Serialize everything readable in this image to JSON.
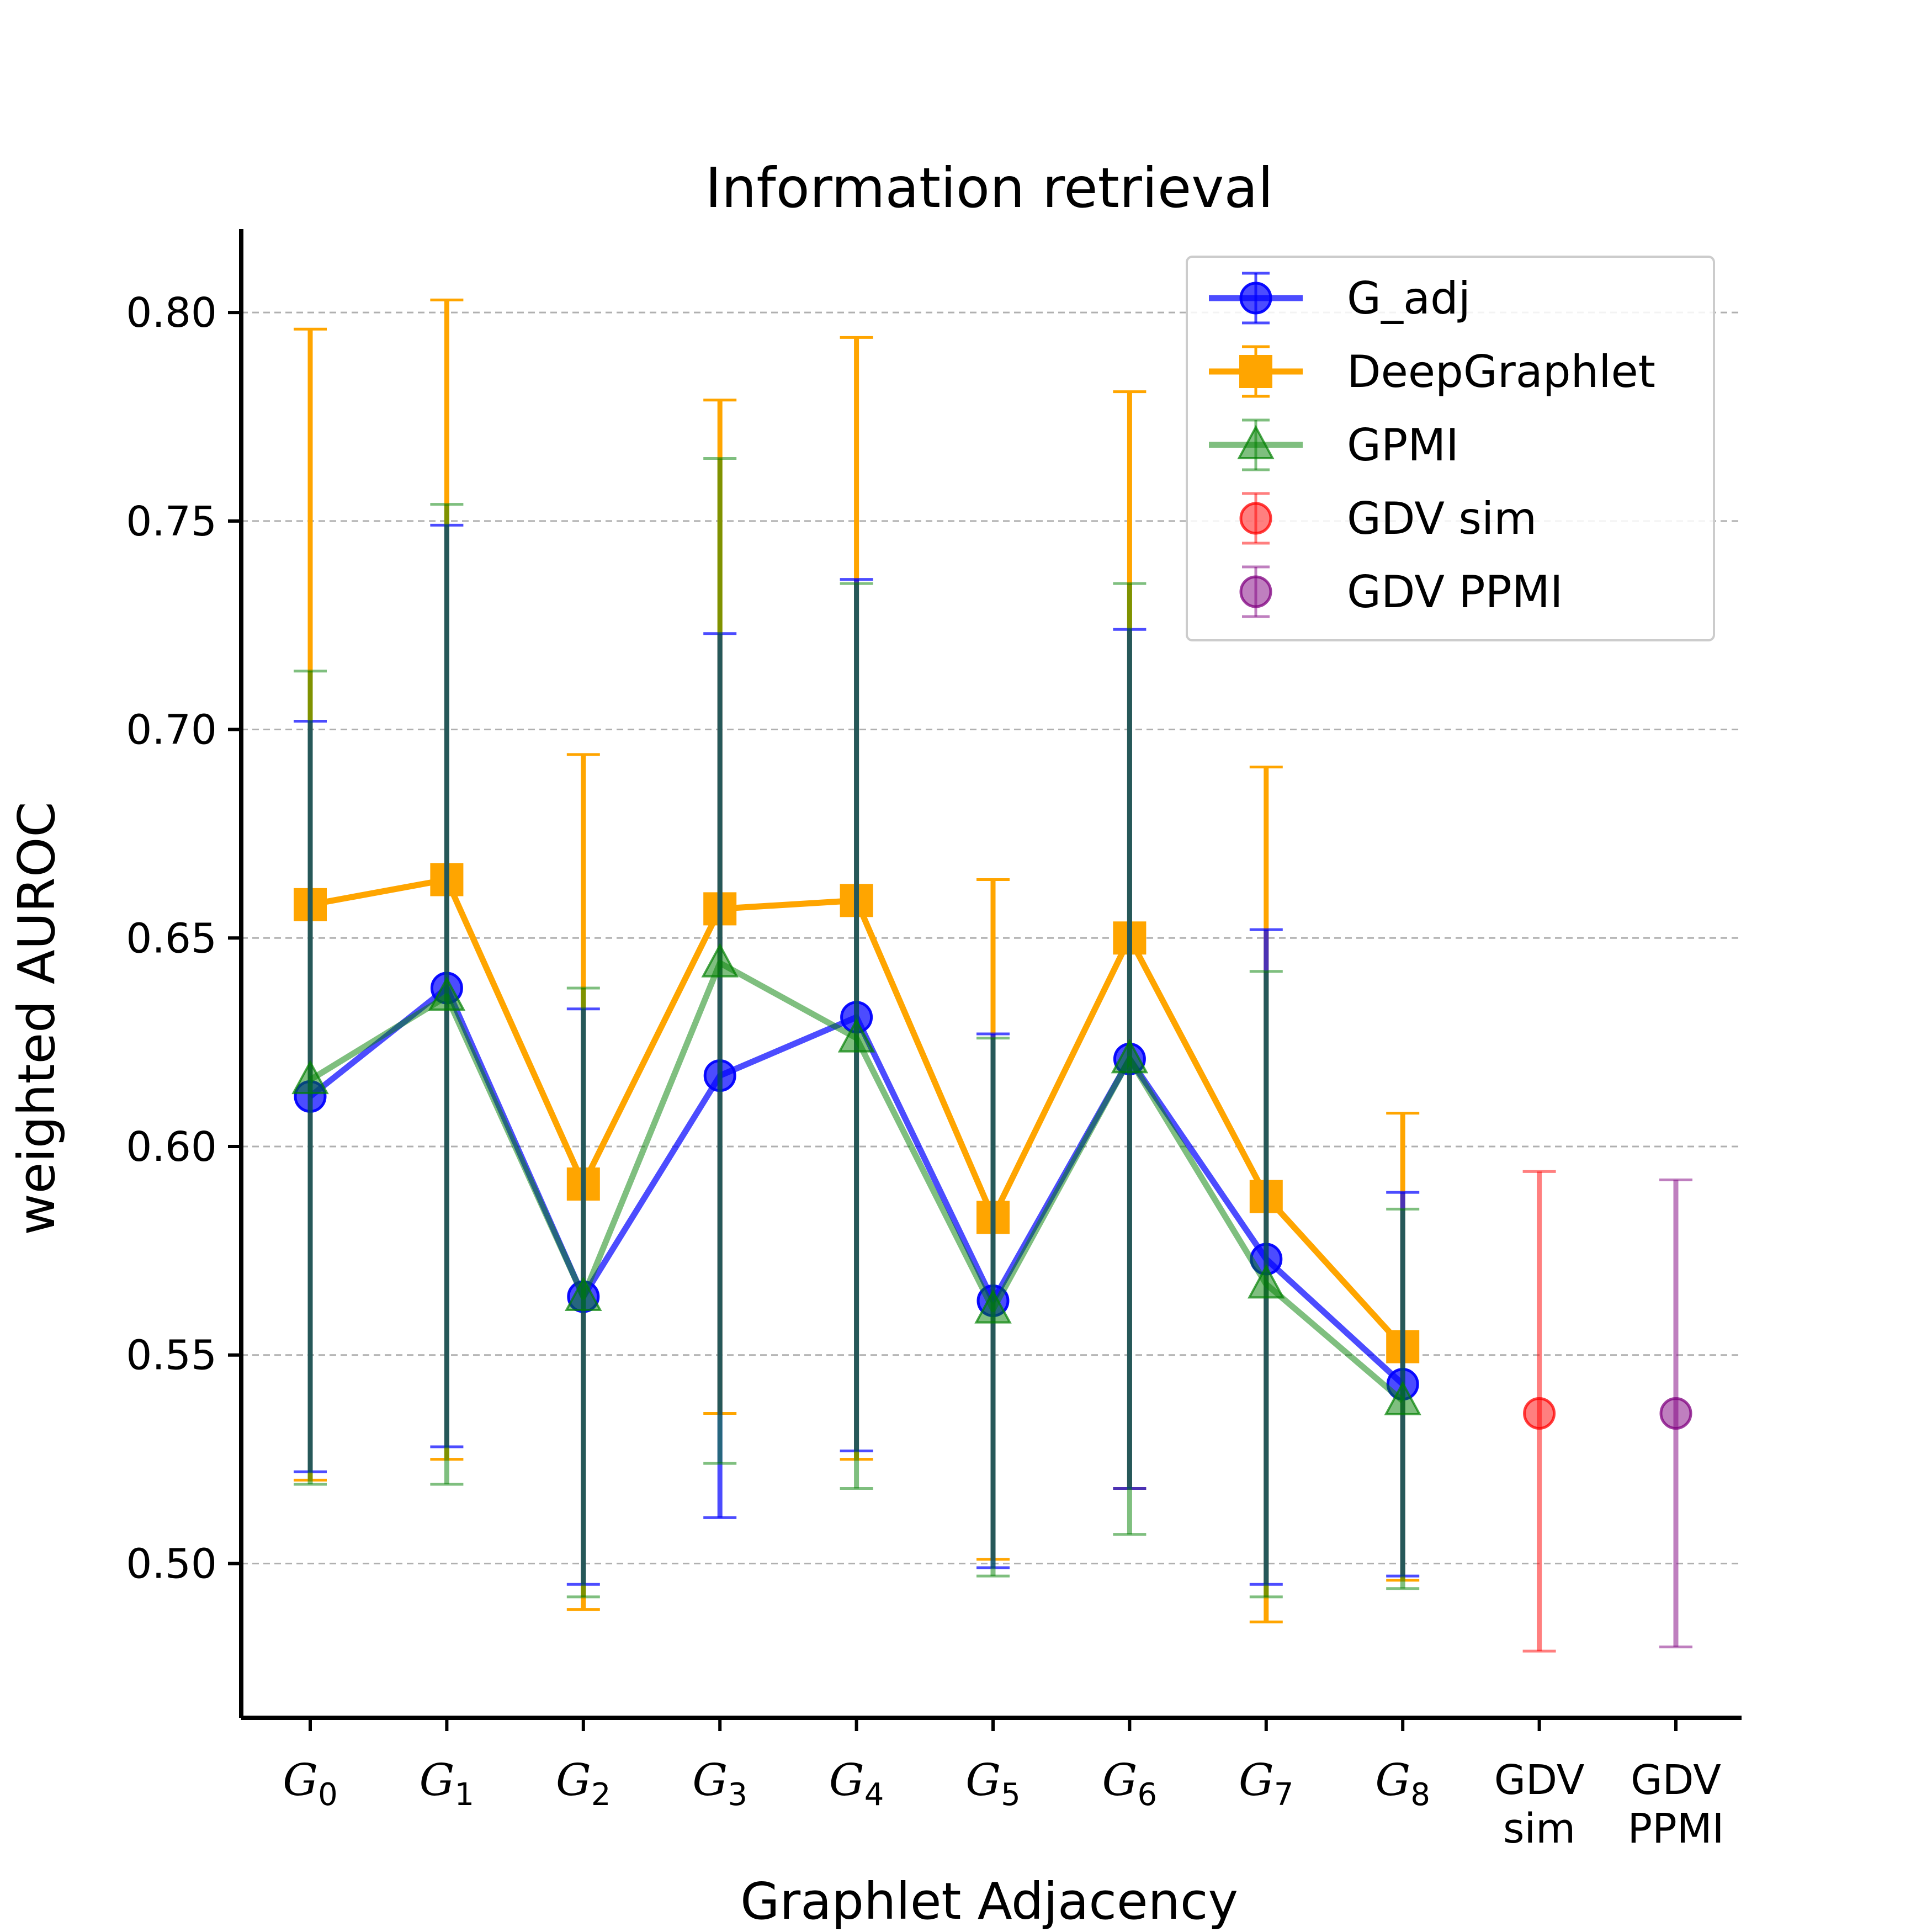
{
  "chart_data": {
    "type": "line",
    "title": "Information retrieval",
    "xlabel": "Graphlet Adjacency",
    "ylabel": "weighted AUROC",
    "ylim": [
      0.463,
      0.82
    ],
    "grid": "horizontal dashed",
    "legend_position": "top-right",
    "yticks": [
      "0.50",
      "0.55",
      "0.60",
      "0.65",
      "0.70",
      "0.75",
      "0.80"
    ],
    "categories": [
      {
        "base": "G",
        "sub": "0"
      },
      {
        "base": "G",
        "sub": "1"
      },
      {
        "base": "G",
        "sub": "2"
      },
      {
        "base": "G",
        "sub": "3"
      },
      {
        "base": "G",
        "sub": "4"
      },
      {
        "base": "G",
        "sub": "5"
      },
      {
        "base": "G",
        "sub": "6"
      },
      {
        "base": "G",
        "sub": "7"
      },
      {
        "base": "G",
        "sub": "8"
      },
      {
        "line1": "GDV",
        "line2": "sim"
      },
      {
        "line1": "GDV",
        "line2": "PPMI"
      }
    ],
    "series": [
      {
        "name": "DeepGraphlet",
        "color": "#ffa500",
        "marker": "square",
        "connect": true,
        "opacity": 1.0,
        "x": [
          0,
          1,
          2,
          3,
          4,
          5,
          6,
          7,
          8
        ],
        "values": [
          0.658,
          0.664,
          0.591,
          0.657,
          0.659,
          0.583,
          0.65,
          0.588,
          0.552
        ],
        "err_low": [
          0.52,
          0.525,
          0.489,
          0.536,
          0.525,
          0.501,
          0.518,
          0.486,
          0.496
        ],
        "err_high": [
          0.796,
          0.803,
          0.694,
          0.779,
          0.794,
          0.664,
          0.781,
          0.691,
          0.608
        ]
      },
      {
        "name": "G_adj",
        "color": "#0000ff",
        "marker": "circle",
        "connect": true,
        "opacity": 0.7,
        "x": [
          0,
          1,
          2,
          3,
          4,
          5,
          6,
          7,
          8
        ],
        "values": [
          0.612,
          0.638,
          0.564,
          0.617,
          0.631,
          0.563,
          0.621,
          0.573,
          0.543
        ],
        "err_low": [
          0.522,
          0.528,
          0.495,
          0.511,
          0.527,
          0.499,
          0.518,
          0.495,
          0.497
        ],
        "err_high": [
          0.702,
          0.749,
          0.633,
          0.723,
          0.736,
          0.627,
          0.724,
          0.652,
          0.589
        ]
      },
      {
        "name": "GPMI",
        "color": "#008000",
        "marker": "triangle",
        "connect": true,
        "opacity": 0.5,
        "x": [
          0,
          1,
          2,
          3,
          4,
          5,
          6,
          7,
          8
        ],
        "values": [
          0.616,
          0.636,
          0.564,
          0.644,
          0.626,
          0.561,
          0.621,
          0.567,
          0.539
        ],
        "err_low": [
          0.519,
          0.519,
          0.492,
          0.524,
          0.518,
          0.497,
          0.507,
          0.492,
          0.494
        ],
        "err_high": [
          0.714,
          0.754,
          0.638,
          0.765,
          0.735,
          0.626,
          0.735,
          0.642,
          0.585
        ]
      },
      {
        "name": "GDV sim",
        "color": "#ff0000",
        "marker": "circle",
        "connect": false,
        "opacity": 0.5,
        "x": [
          9
        ],
        "values": [
          0.536
        ],
        "err_low": [
          0.479
        ],
        "err_high": [
          0.594
        ]
      },
      {
        "name": "GDV PPMI",
        "color": "#800080",
        "marker": "circle",
        "connect": false,
        "opacity": 0.5,
        "x": [
          10
        ],
        "values": [
          0.536
        ],
        "err_low": [
          0.48
        ],
        "err_high": [
          0.592
        ]
      }
    ],
    "legend_order": [
      "G_adj",
      "DeepGraphlet",
      "GPMI",
      "GDV sim",
      "GDV PPMI"
    ]
  }
}
